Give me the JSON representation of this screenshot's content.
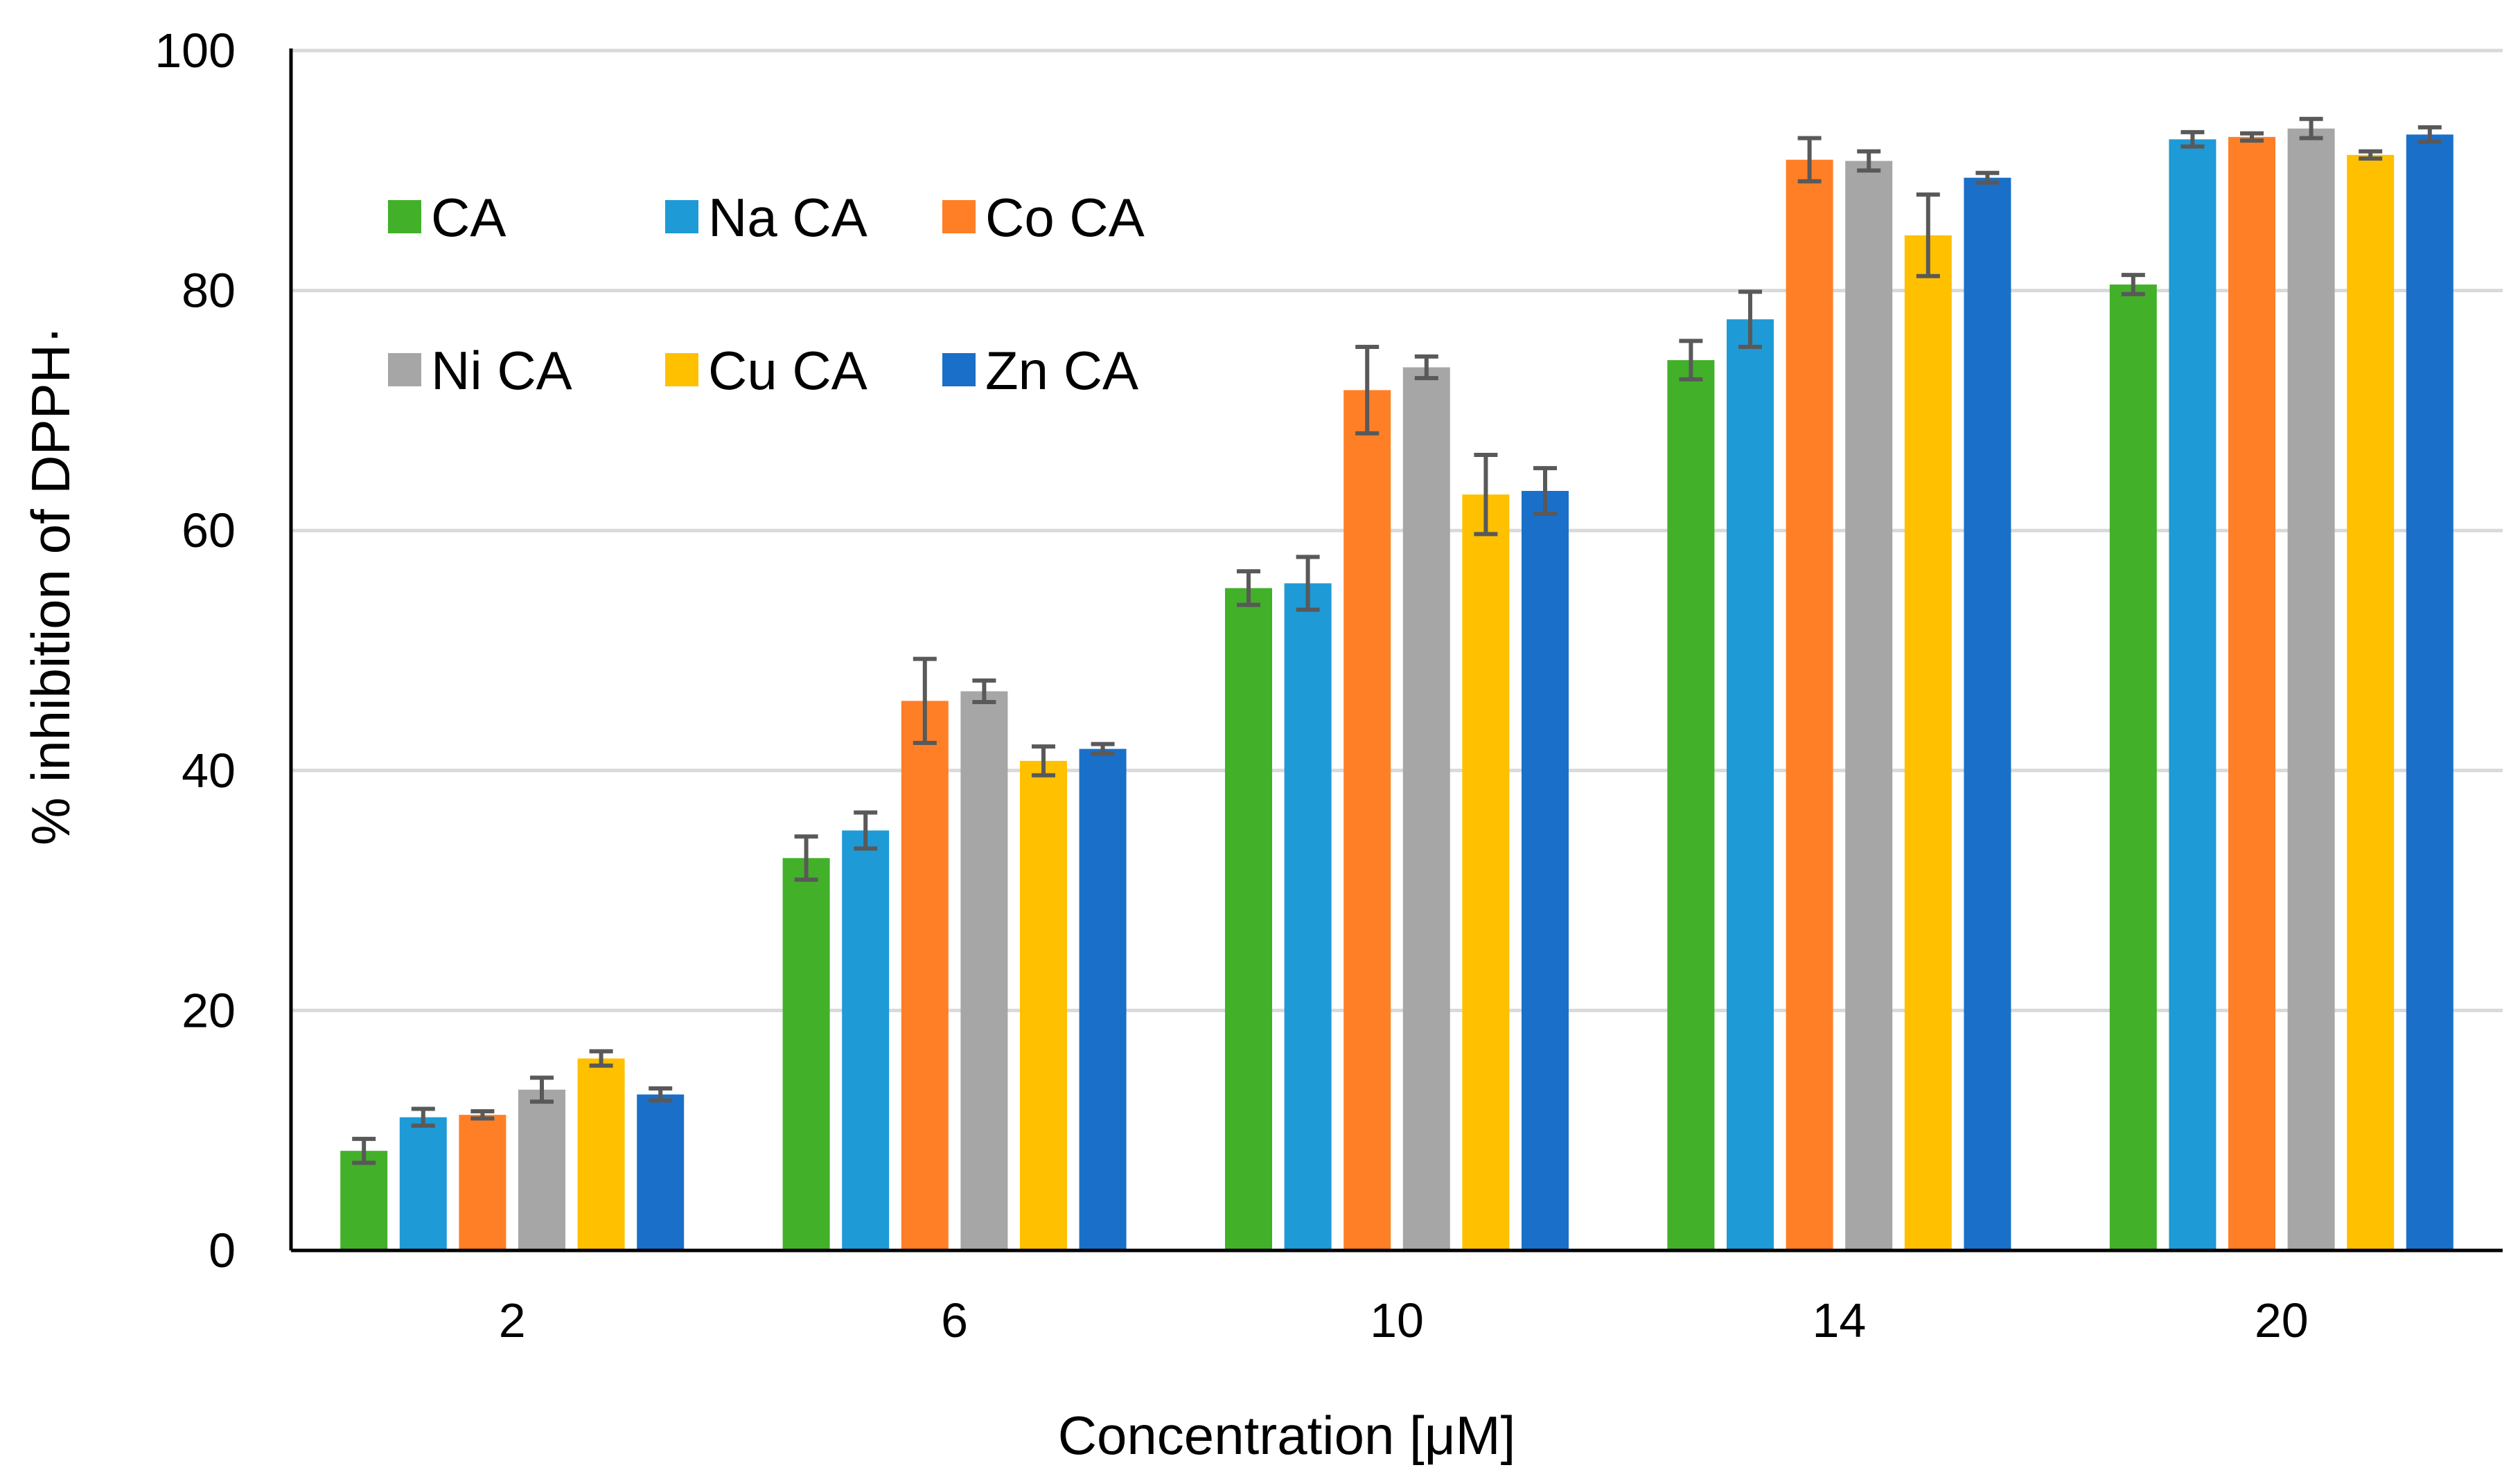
{
  "chart_data": {
    "type": "bar",
    "title": "",
    "xlabel": "Concentration [μM]",
    "ylabel": "% inhibition of DPPH·",
    "ylim": [
      0,
      100
    ],
    "yticks": [
      0,
      20,
      40,
      60,
      80,
      100
    ],
    "grid": true,
    "legend_position": "top-left",
    "categories": [
      "2",
      "6",
      "10",
      "14",
      "20"
    ],
    "series": [
      {
        "name": "CA",
        "color": "#43B02A",
        "values": [
          8.3,
          32.7,
          55.2,
          74.2,
          80.5
        ],
        "errors": [
          1.0,
          1.8,
          1.4,
          1.6,
          0.8
        ]
      },
      {
        "name": "Na CA",
        "color": "#1E9AD6",
        "values": [
          11.1,
          35.0,
          55.6,
          77.6,
          92.6
        ],
        "errors": [
          0.7,
          1.5,
          2.2,
          2.3,
          0.6
        ]
      },
      {
        "name": "Co CA",
        "color": "#FF7F27",
        "values": [
          11.3,
          45.8,
          71.7,
          90.9,
          92.8
        ],
        "errors": [
          0.3,
          3.5,
          3.6,
          1.8,
          0.3
        ]
      },
      {
        "name": "Ni CA",
        "color": "#A6A6A6",
        "values": [
          13.4,
          46.6,
          73.6,
          90.8,
          93.5
        ],
        "errors": [
          1.0,
          0.9,
          0.9,
          0.8,
          0.8
        ]
      },
      {
        "name": "Cu CA",
        "color": "#FFC000",
        "values": [
          16.0,
          40.8,
          63.0,
          84.6,
          91.3
        ],
        "errors": [
          0.6,
          1.2,
          3.3,
          3.4,
          0.3
        ]
      },
      {
        "name": "Zn CA",
        "color": "#1A70C8",
        "values": [
          13.0,
          41.8,
          63.3,
          89.4,
          93.0
        ],
        "errors": [
          0.5,
          0.4,
          1.9,
          0.4,
          0.6
        ]
      }
    ]
  }
}
